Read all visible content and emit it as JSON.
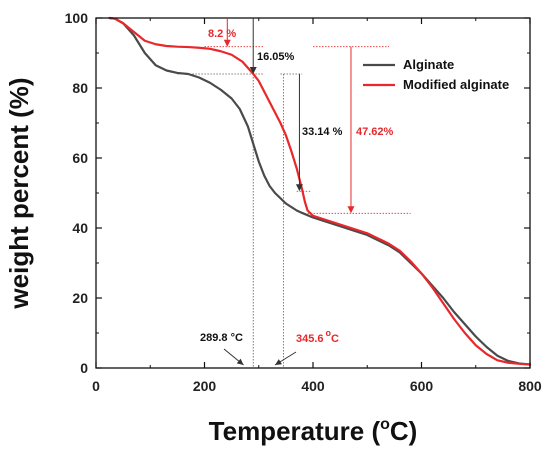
{
  "chart_data": {
    "type": "line",
    "xlabel": "Temperature (",
    "xlabel_sup": "o",
    "xlabel_end": "C)",
    "ylabel": "weight percent (%)",
    "xlim": [
      0,
      800
    ],
    "ylim": [
      0,
      100
    ],
    "xticks": [
      "0",
      "200",
      "400",
      "600",
      "800"
    ],
    "yticks": [
      "0",
      "20",
      "40",
      "60",
      "80",
      "100"
    ],
    "grid": false,
    "legend_position": "top-right",
    "series": [
      {
        "name": "Alginate",
        "color": "#4a4a4a",
        "x": [
          25,
          35,
          50,
          70,
          90,
          110,
          130,
          150,
          170,
          190,
          210,
          230,
          250,
          265,
          280,
          290,
          300,
          310,
          320,
          330,
          340,
          350,
          360,
          370,
          380,
          400,
          420,
          440,
          460,
          480,
          500,
          520,
          540,
          560,
          580,
          600,
          620,
          640,
          660,
          680,
          700,
          720,
          740,
          760,
          780,
          800
        ],
        "y": [
          100,
          99.8,
          98.5,
          95,
          90,
          86.5,
          85,
          84.3,
          84,
          83,
          81.5,
          79.5,
          77,
          74,
          69,
          64,
          59,
          55,
          52,
          50,
          48.5,
          47,
          46,
          45,
          44.3,
          43,
          42,
          41,
          40,
          39,
          38,
          36.5,
          35,
          33,
          30,
          27,
          23.5,
          20,
          16,
          12.5,
          9,
          6,
          3.5,
          2,
          1.3,
          1
        ]
      },
      {
        "name": "Modified alginate",
        "color": "#e8282b",
        "x": [
          25,
          35,
          50,
          70,
          90,
          110,
          130,
          150,
          170,
          190,
          210,
          230,
          250,
          270,
          290,
          300,
          310,
          320,
          330,
          340,
          350,
          360,
          370,
          380,
          385,
          390,
          400,
          420,
          440,
          460,
          480,
          500,
          520,
          540,
          560,
          580,
          600,
          620,
          640,
          660,
          680,
          700,
          720,
          740,
          760,
          780,
          800
        ],
        "y": [
          100,
          99.8,
          98.5,
          96,
          93.5,
          92.5,
          92,
          91.8,
          91.7,
          91.5,
          91.2,
          90.5,
          89.5,
          87.5,
          84,
          82,
          79,
          76,
          73,
          70,
          66.5,
          62,
          57,
          51,
          47.5,
          45,
          43.5,
          42.5,
          41.5,
          40.5,
          39.5,
          38.5,
          37,
          35.5,
          33.5,
          30.5,
          27,
          23,
          18.5,
          14,
          10,
          6.5,
          4,
          2.2,
          1.5,
          1.2,
          1
        ]
      }
    ],
    "annotations": {
      "label_8_2": "8.2 %",
      "label_16_05": "16.05%",
      "label_33_14": "33.14 %",
      "label_47_62": "47.62%",
      "label_289_8": "289.8 °C",
      "label_345_6_value": "345.6",
      "label_345_6_sup": "o",
      "label_345_6_unit": "C"
    }
  }
}
